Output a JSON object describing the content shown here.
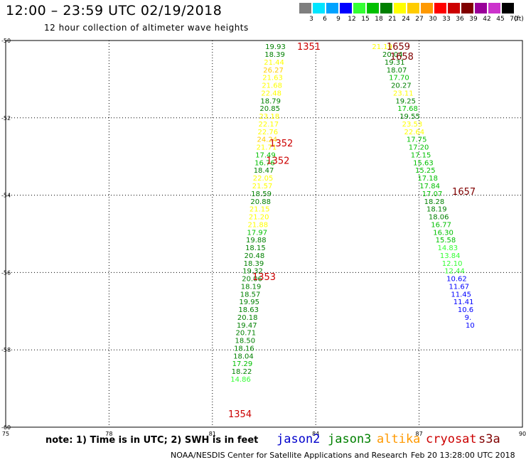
{
  "header": {
    "title": "12:00 – 23:59 UTC 02/19/2018",
    "subtitle": "12 hour collection of altimeter wave heights"
  },
  "color_scale": {
    "unit": "(ft)",
    "bins": [
      {
        "label": "3",
        "color": "#7f7f7f"
      },
      {
        "label": "6",
        "color": "#00e5ff"
      },
      {
        "label": "9",
        "color": "#00a2ff"
      },
      {
        "label": "12",
        "color": "#0000ff"
      },
      {
        "label": "15",
        "color": "#33ff33"
      },
      {
        "label": "18",
        "color": "#00c000"
      },
      {
        "label": "21",
        "color": "#008000"
      },
      {
        "label": "24",
        "color": "#ffff00"
      },
      {
        "label": "27",
        "color": "#ffcc00"
      },
      {
        "label": "30",
        "color": "#ff9900"
      },
      {
        "label": "33",
        "color": "#ff0000"
      },
      {
        "label": "36",
        "color": "#cc0000"
      },
      {
        "label": "39",
        "color": "#800000"
      },
      {
        "label": "42",
        "color": "#990099"
      },
      {
        "label": "45",
        "color": "#cc33cc"
      },
      {
        "label": "70",
        "color": "#000000"
      }
    ]
  },
  "satellites": {
    "jason2": {
      "label": "jason2",
      "color": "#0000cc"
    },
    "jason3": {
      "label": "jason3",
      "color": "#008000"
    },
    "altika": {
      "label": "altika",
      "color": "#ff9900"
    },
    "cryosat": {
      "label": "cryosat",
      "color": "#cc0000"
    },
    "s3a": {
      "label": "s3a",
      "color": "#800000"
    }
  },
  "note": "note: 1) Time is in UTC; 2) SWH is in feet",
  "footer": {
    "credit": "NOAA/NESDIS Center for Satellite Applications and Research",
    "timestamp": "Feb 20 13:28:00 UTC 2018"
  },
  "chart_data": {
    "type": "scatter",
    "xlim": [
      75,
      90
    ],
    "ylim": [
      -60,
      -50
    ],
    "xticks": [
      "75",
      "78",
      "81",
      "84",
      "87",
      "90"
    ],
    "yticks": [
      "-50",
      "-52",
      "-54",
      "-56",
      "-58",
      "-60"
    ],
    "time_labels": [
      {
        "text": "1351",
        "lon": 83.8,
        "lat": -50.15,
        "sat": "cryosat"
      },
      {
        "text": "1352",
        "lon": 83.0,
        "lat": -52.65,
        "sat": "cryosat"
      },
      {
        "text": "1352",
        "lon": 82.9,
        "lat": -53.1,
        "sat": "cryosat"
      },
      {
        "text": "1353",
        "lon": 82.5,
        "lat": -56.1,
        "sat": "cryosat"
      },
      {
        "text": "1354",
        "lon": 81.8,
        "lat": -59.65,
        "sat": "cryosat"
      },
      {
        "text": "1659",
        "lon": 86.4,
        "lat": -50.15,
        "sat": "s3a"
      },
      {
        "text": "1658",
        "lon": 86.5,
        "lat": -50.4,
        "sat": "s3a"
      },
      {
        "text": "1657",
        "lon": 88.3,
        "lat": -53.9,
        "sat": "s3a"
      }
    ],
    "series": [
      {
        "name": "cryosat",
        "points": [
          {
            "lon": 82.83,
            "lat": -50.15,
            "swh": "19.93"
          },
          {
            "lon": 82.81,
            "lat": -50.35,
            "swh": "18.39"
          },
          {
            "lon": 82.79,
            "lat": -50.55,
            "swh": "21.44"
          },
          {
            "lon": 82.77,
            "lat": -50.75,
            "swh": "26.27"
          },
          {
            "lon": 82.75,
            "lat": -50.95,
            "swh": "21.63"
          },
          {
            "lon": 82.73,
            "lat": -51.15,
            "swh": "21.68"
          },
          {
            "lon": 82.71,
            "lat": -51.35,
            "swh": "22.48"
          },
          {
            "lon": 82.69,
            "lat": -51.55,
            "swh": "18.79"
          },
          {
            "lon": 82.67,
            "lat": -51.75,
            "swh": "20.85"
          },
          {
            "lon": 82.65,
            "lat": -51.95,
            "swh": "23.18"
          },
          {
            "lon": 82.63,
            "lat": -52.15,
            "swh": "22.17"
          },
          {
            "lon": 82.61,
            "lat": -52.35,
            "swh": "22.76"
          },
          {
            "lon": 82.59,
            "lat": -52.55,
            "swh": "24.24"
          },
          {
            "lon": 82.57,
            "lat": -52.75,
            "swh": "21.71"
          },
          {
            "lon": 82.54,
            "lat": -52.95,
            "swh": "17.49"
          },
          {
            "lon": 82.52,
            "lat": -53.15,
            "swh": "16.76"
          },
          {
            "lon": 82.49,
            "lat": -53.35,
            "swh": "18.47"
          },
          {
            "lon": 82.47,
            "lat": -53.55,
            "swh": "22.05"
          },
          {
            "lon": 82.45,
            "lat": -53.75,
            "swh": "21.57"
          },
          {
            "lon": 82.42,
            "lat": -53.95,
            "swh": "18.59"
          },
          {
            "lon": 82.4,
            "lat": -54.15,
            "swh": "20.88"
          },
          {
            "lon": 82.37,
            "lat": -54.35,
            "swh": "21.15"
          },
          {
            "lon": 82.35,
            "lat": -54.55,
            "swh": "21.20"
          },
          {
            "lon": 82.32,
            "lat": -54.75,
            "swh": "21.88"
          },
          {
            "lon": 82.3,
            "lat": -54.95,
            "swh": "17.97"
          },
          {
            "lon": 82.27,
            "lat": -55.15,
            "swh": "19.88"
          },
          {
            "lon": 82.25,
            "lat": -55.35,
            "swh": "18.15"
          },
          {
            "lon": 82.22,
            "lat": -55.55,
            "swh": "20.48"
          },
          {
            "lon": 82.2,
            "lat": -55.75,
            "swh": "18.39"
          },
          {
            "lon": 82.17,
            "lat": -55.95,
            "swh": "19.32"
          },
          {
            "lon": 82.15,
            "lat": -56.15,
            "swh": "20.06"
          },
          {
            "lon": 82.12,
            "lat": -56.35,
            "swh": "18.19"
          },
          {
            "lon": 82.1,
            "lat": -56.55,
            "swh": "18.57"
          },
          {
            "lon": 82.07,
            "lat": -56.75,
            "swh": "19.95"
          },
          {
            "lon": 82.05,
            "lat": -56.95,
            "swh": "18.63"
          },
          {
            "lon": 82.02,
            "lat": -57.15,
            "swh": "20.18"
          },
          {
            "lon": 82.0,
            "lat": -57.35,
            "swh": "19.47"
          },
          {
            "lon": 81.97,
            "lat": -57.55,
            "swh": "20.71"
          },
          {
            "lon": 81.95,
            "lat": -57.75,
            "swh": "18.50"
          },
          {
            "lon": 81.92,
            "lat": -57.95,
            "swh": "18.16"
          },
          {
            "lon": 81.9,
            "lat": -58.15,
            "swh": "18.04"
          },
          {
            "lon": 81.87,
            "lat": -58.35,
            "swh": "17.29"
          },
          {
            "lon": 81.85,
            "lat": -58.55,
            "swh": "18.22"
          },
          {
            "lon": 81.82,
            "lat": -58.75,
            "swh": "14.86"
          }
        ]
      },
      {
        "name": "s3a",
        "points": [
          {
            "lon": 85.93,
            "lat": -50.15,
            "swh": "21.19"
          },
          {
            "lon": 86.23,
            "lat": -50.35,
            "swh": "20.04"
          },
          {
            "lon": 86.29,
            "lat": -50.55,
            "swh": "19.31"
          },
          {
            "lon": 86.35,
            "lat": -50.75,
            "swh": "18.07"
          },
          {
            "lon": 86.42,
            "lat": -50.95,
            "swh": "17.70"
          },
          {
            "lon": 86.48,
            "lat": -51.15,
            "swh": "20.27"
          },
          {
            "lon": 86.54,
            "lat": -51.35,
            "swh": "23.11"
          },
          {
            "lon": 86.61,
            "lat": -51.55,
            "swh": "19.25"
          },
          {
            "lon": 86.67,
            "lat": -51.75,
            "swh": "17.68"
          },
          {
            "lon": 86.73,
            "lat": -51.95,
            "swh": "19.55"
          },
          {
            "lon": 86.8,
            "lat": -52.15,
            "swh": "23.53"
          },
          {
            "lon": 86.86,
            "lat": -52.35,
            "swh": "22.64"
          },
          {
            "lon": 86.93,
            "lat": -52.55,
            "swh": "17.75"
          },
          {
            "lon": 86.99,
            "lat": -52.75,
            "swh": "17.20"
          },
          {
            "lon": 87.05,
            "lat": -52.95,
            "swh": "17.15"
          },
          {
            "lon": 87.12,
            "lat": -53.15,
            "swh": "15.63"
          },
          {
            "lon": 87.18,
            "lat": -53.35,
            "swh": "15.25"
          },
          {
            "lon": 87.25,
            "lat": -53.55,
            "swh": "17.18"
          },
          {
            "lon": 87.31,
            "lat": -53.75,
            "swh": "17.84"
          },
          {
            "lon": 87.38,
            "lat": -53.95,
            "swh": "17.07"
          },
          {
            "lon": 87.44,
            "lat": -54.15,
            "swh": "18.28"
          },
          {
            "lon": 87.51,
            "lat": -54.35,
            "swh": "18.19"
          },
          {
            "lon": 87.57,
            "lat": -54.55,
            "swh": "18.06"
          },
          {
            "lon": 87.64,
            "lat": -54.75,
            "swh": "16.77"
          },
          {
            "lon": 87.7,
            "lat": -54.95,
            "swh": "16.30"
          },
          {
            "lon": 87.77,
            "lat": -55.15,
            "swh": "15.58"
          },
          {
            "lon": 87.83,
            "lat": -55.35,
            "swh": "14.83"
          },
          {
            "lon": 87.9,
            "lat": -55.55,
            "swh": "13.84"
          },
          {
            "lon": 87.96,
            "lat": -55.75,
            "swh": "12.10"
          },
          {
            "lon": 88.03,
            "lat": -55.95,
            "swh": "12.44"
          },
          {
            "lon": 88.09,
            "lat": -56.15,
            "swh": "10.62"
          },
          {
            "lon": 88.16,
            "lat": -56.35,
            "swh": "11.67"
          },
          {
            "lon": 88.22,
            "lat": -56.55,
            "swh": "11.45"
          },
          {
            "lon": 88.29,
            "lat": -56.75,
            "swh": "11.41"
          },
          {
            "lon": 88.35,
            "lat": -56.95,
            "swh": "10.6"
          },
          {
            "lon": 88.42,
            "lat": -57.15,
            "swh": "9."
          },
          {
            "lon": 88.48,
            "lat": -57.35,
            "swh": "10"
          }
        ]
      }
    ]
  }
}
